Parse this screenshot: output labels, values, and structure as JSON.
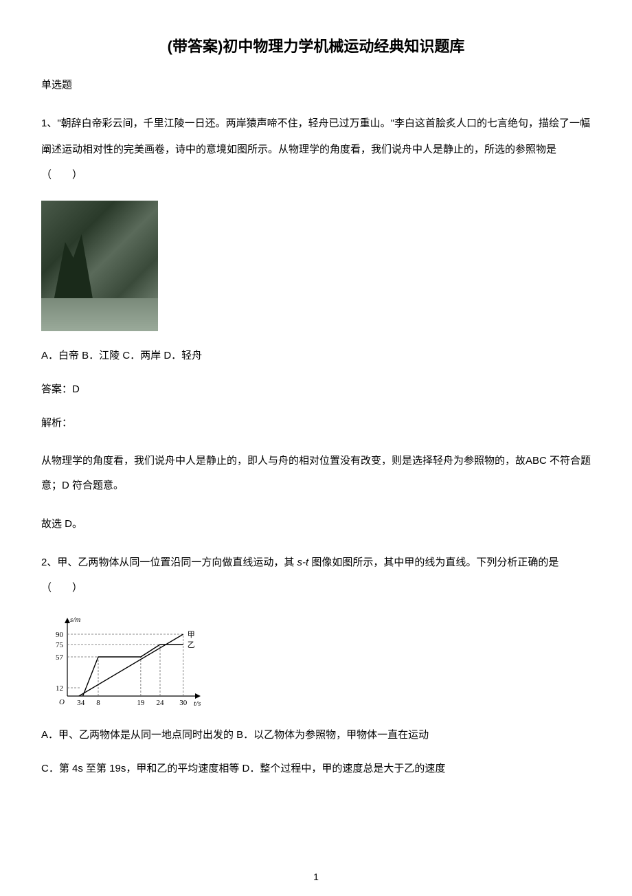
{
  "title": "(带答案)初中物理力学机械运动经典知识题库",
  "section": "单选题",
  "q1": {
    "text": "1、\"朝辞白帝彩云间，千里江陵一日还。两岸猿声啼不住，轻舟已过万重山。\"李白这首脍炙人口的七言绝句，描绘了一幅阐述运动相对性的完美画卷，诗中的意境如图所示。从物理学的角度看，我们说舟中人是静止的，所选的参照物是（　　）",
    "options": "A．白帝 B．江陵 C．两岸 D．轻舟",
    "answer": "答案：D",
    "explain_label": "解析：",
    "explain": "从物理学的角度看，我们说舟中人是静止的，即人与舟的相对位置没有改变，则是选择轻舟为参照物的，故ABC 不符合题意；D 符合题意。",
    "conclusion": "故选 D。"
  },
  "q2": {
    "text_a": "2、甲、乙两物体从同一位置沿同一方向做直线运动，其 ",
    "text_italic": "s-t ",
    "text_b": "图像如图所示，其中甲的线为直线。下列分析正确的是（　　）",
    "chart": {
      "type": "line",
      "yaxis_label": "s/m",
      "xaxis_label": "t/s",
      "y_ticks": [
        12,
        57,
        75,
        90
      ],
      "x_ticks": [
        3,
        4,
        8,
        19,
        24,
        30
      ],
      "series_labels": {
        "jia": "甲",
        "yi": "乙"
      },
      "jia_points": [
        [
          3,
          0
        ],
        [
          30,
          90
        ]
      ],
      "yi_points": [
        [
          4,
          0
        ],
        [
          8,
          57
        ],
        [
          19,
          57
        ],
        [
          24,
          75
        ],
        [
          30,
          75
        ]
      ],
      "colors": {
        "axis": "#000000",
        "line": "#000000",
        "dash": "#666666",
        "background": "#ffffff"
      },
      "font_size": 11,
      "line_width": 1.2
    },
    "options": "A．甲、乙两物体是从同一地点同时出发的 B．以乙物体为参照物，甲物体一直在运动",
    "options2": "C．第 4s 至第 19s，甲和乙的平均速度相等 D．整个过程中，甲的速度总是大于乙的速度"
  },
  "page_number": "1"
}
